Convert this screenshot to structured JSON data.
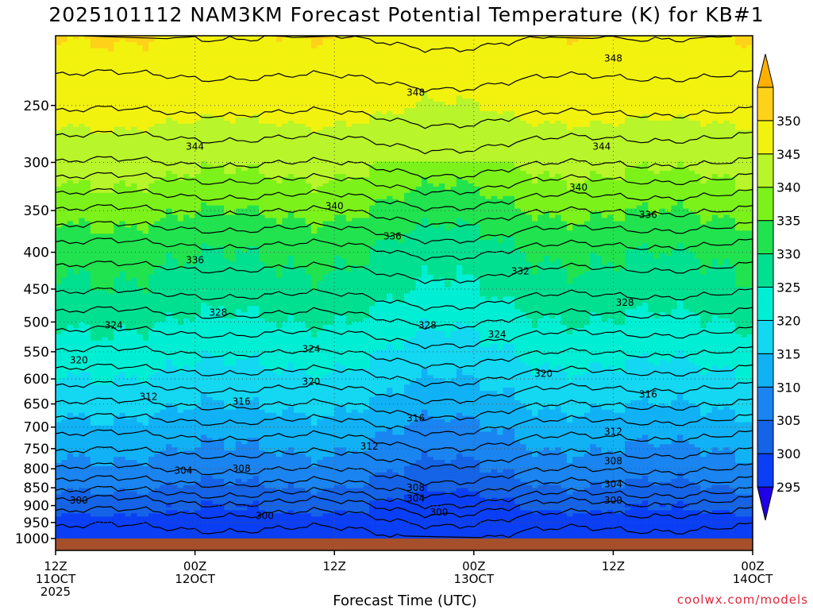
{
  "chart_data": {
    "type": "heatmap",
    "title": "2025101112 NAM3KM Forecast Potential Temperature (K) for KB#1",
    "xlabel": "Forecast Time (UTC)",
    "ylabel": "",
    "credit": "coolwx.com/models",
    "y_axis": {
      "unit": "hPa",
      "scale": "log",
      "range": [
        200,
        1000
      ],
      "ticks": [
        250,
        300,
        350,
        400,
        450,
        500,
        550,
        600,
        650,
        700,
        750,
        800,
        850,
        900,
        950,
        1000
      ]
    },
    "x_axis": {
      "range_hours": [
        0,
        60
      ],
      "ticks": [
        {
          "hour": 0,
          "line1": "12Z",
          "line2": "11OCT",
          "line3": "2025"
        },
        {
          "hour": 12,
          "line1": "00Z",
          "line2": "12OCT",
          "line3": ""
        },
        {
          "hour": 24,
          "line1": "12Z",
          "line2": "",
          "line3": ""
        },
        {
          "hour": 36,
          "line1": "00Z",
          "line2": "13OCT",
          "line3": ""
        },
        {
          "hour": 48,
          "line1": "12Z",
          "line2": "",
          "line3": ""
        },
        {
          "hour": 60,
          "line1": "00Z",
          "line2": "14OCT",
          "line3": ""
        }
      ]
    },
    "grid": true,
    "colorbar": {
      "levels": [
        295,
        300,
        305,
        310,
        315,
        320,
        325,
        330,
        335,
        340,
        345,
        350
      ],
      "colors": [
        "#1f00e6",
        "#0a3ff5",
        "#1563e6",
        "#1a84f0",
        "#11b2f5",
        "#14d7f2",
        "#00efd4",
        "#00e090",
        "#21e34f",
        "#7cf21b",
        "#b8f52a",
        "#f2f20f",
        "#ffd21a",
        "#ffb000"
      ],
      "extend": "both",
      "position": "right"
    },
    "profile": {
      "pressure": [
        1000,
        950,
        900,
        850,
        800,
        750,
        700,
        650,
        600,
        550,
        500,
        450,
        400,
        350,
        300,
        250,
        200
      ],
      "theta": [
        297,
        298.5,
        301,
        305,
        308,
        310.5,
        313,
        316,
        319,
        322,
        325,
        328.5,
        331,
        336,
        342,
        346.5,
        350
      ]
    },
    "contour_labels": [
      {
        "value": 300,
        "hour": 2,
        "pressure": 885
      },
      {
        "value": 300,
        "hour": 18,
        "pressure": 930
      },
      {
        "value": 300,
        "hour": 33,
        "pressure": 920
      },
      {
        "value": 300,
        "hour": 48,
        "pressure": 885
      },
      {
        "value": 304,
        "hour": 11,
        "pressure": 805
      },
      {
        "value": 304,
        "hour": 31,
        "pressure": 880
      },
      {
        "value": 304,
        "hour": 48,
        "pressure": 840
      },
      {
        "value": 308,
        "hour": 16,
        "pressure": 800
      },
      {
        "value": 308,
        "hour": 31,
        "pressure": 850
      },
      {
        "value": 308,
        "hour": 48,
        "pressure": 780
      },
      {
        "value": 312,
        "hour": 8,
        "pressure": 635
      },
      {
        "value": 312,
        "hour": 27,
        "pressure": 745
      },
      {
        "value": 312,
        "hour": 48,
        "pressure": 710
      },
      {
        "value": 316,
        "hour": 16,
        "pressure": 645
      },
      {
        "value": 316,
        "hour": 31,
        "pressure": 680
      },
      {
        "value": 316,
        "hour": 51,
        "pressure": 630
      },
      {
        "value": 320,
        "hour": 2,
        "pressure": 565
      },
      {
        "value": 320,
        "hour": 22,
        "pressure": 605
      },
      {
        "value": 320,
        "hour": 42,
        "pressure": 590
      },
      {
        "value": 324,
        "hour": 5,
        "pressure": 505
      },
      {
        "value": 324,
        "hour": 22,
        "pressure": 545
      },
      {
        "value": 324,
        "hour": 38,
        "pressure": 520
      },
      {
        "value": 328,
        "hour": 14,
        "pressure": 485
      },
      {
        "value": 328,
        "hour": 32,
        "pressure": 505
      },
      {
        "value": 328,
        "hour": 49,
        "pressure": 470
      },
      {
        "value": 332,
        "hour": 40,
        "pressure": 425
      },
      {
        "value": 336,
        "hour": 12,
        "pressure": 410
      },
      {
        "value": 336,
        "hour": 29,
        "pressure": 380
      },
      {
        "value": 336,
        "hour": 51,
        "pressure": 355
      },
      {
        "value": 340,
        "hour": 24,
        "pressure": 345
      },
      {
        "value": 340,
        "hour": 45,
        "pressure": 325
      },
      {
        "value": 344,
        "hour": 12,
        "pressure": 285
      },
      {
        "value": 344,
        "hour": 47,
        "pressure": 285
      },
      {
        "value": 348,
        "hour": 31,
        "pressure": 240
      },
      {
        "value": 348,
        "hour": 48,
        "pressure": 215
      }
    ]
  }
}
